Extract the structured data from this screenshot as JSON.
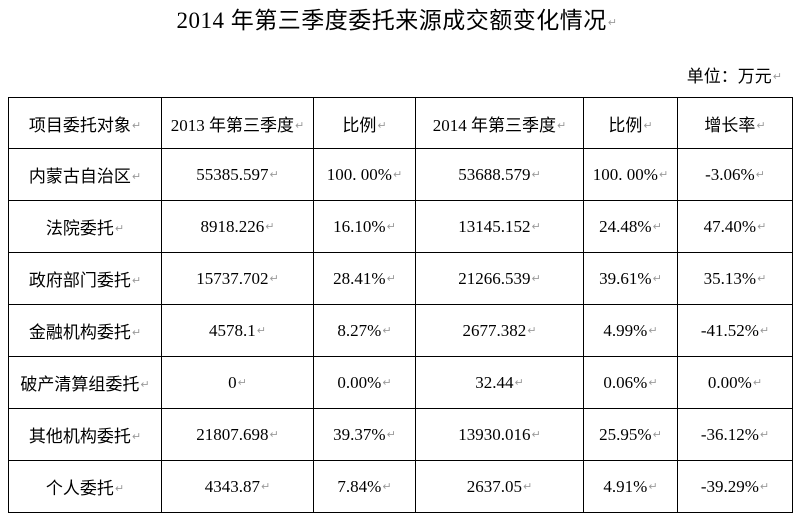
{
  "document": {
    "title": "2014 年第三季度委托来源成交额变化情况",
    "unit_label": "单位：万元"
  },
  "marks": {
    "paragraph": "↵",
    "cell_end": "↵"
  },
  "table": {
    "headers": [
      "项目委托对象",
      "2013 年第三季度",
      "比例",
      "2014 年第三季度",
      "比例",
      "增长率"
    ],
    "rows": [
      [
        "内蒙古自治区",
        "55385.597",
        "100. 00%",
        "53688.579",
        "100. 00%",
        "-3.06%"
      ],
      [
        "法院委托",
        "8918.226",
        "16.10%",
        "13145.152",
        "24.48%",
        "47.40%"
      ],
      [
        "政府部门委托",
        "15737.702",
        "28.41%",
        "21266.539",
        "39.61%",
        "35.13%"
      ],
      [
        "金融机构委托",
        "4578.1",
        "8.27%",
        "2677.382",
        "4.99%",
        "-41.52%"
      ],
      [
        "破产清算组委托",
        "0",
        "0.00%",
        "32.44",
        "0.06%",
        "0.00%"
      ],
      [
        "其他机构委托",
        "21807.698",
        "39.37%",
        "13930.016",
        "25.95%",
        "-36.12%"
      ],
      [
        "个人委托",
        "4343.87",
        "7.84%",
        "2637.05",
        "4.91%",
        "-39.29%"
      ]
    ]
  }
}
